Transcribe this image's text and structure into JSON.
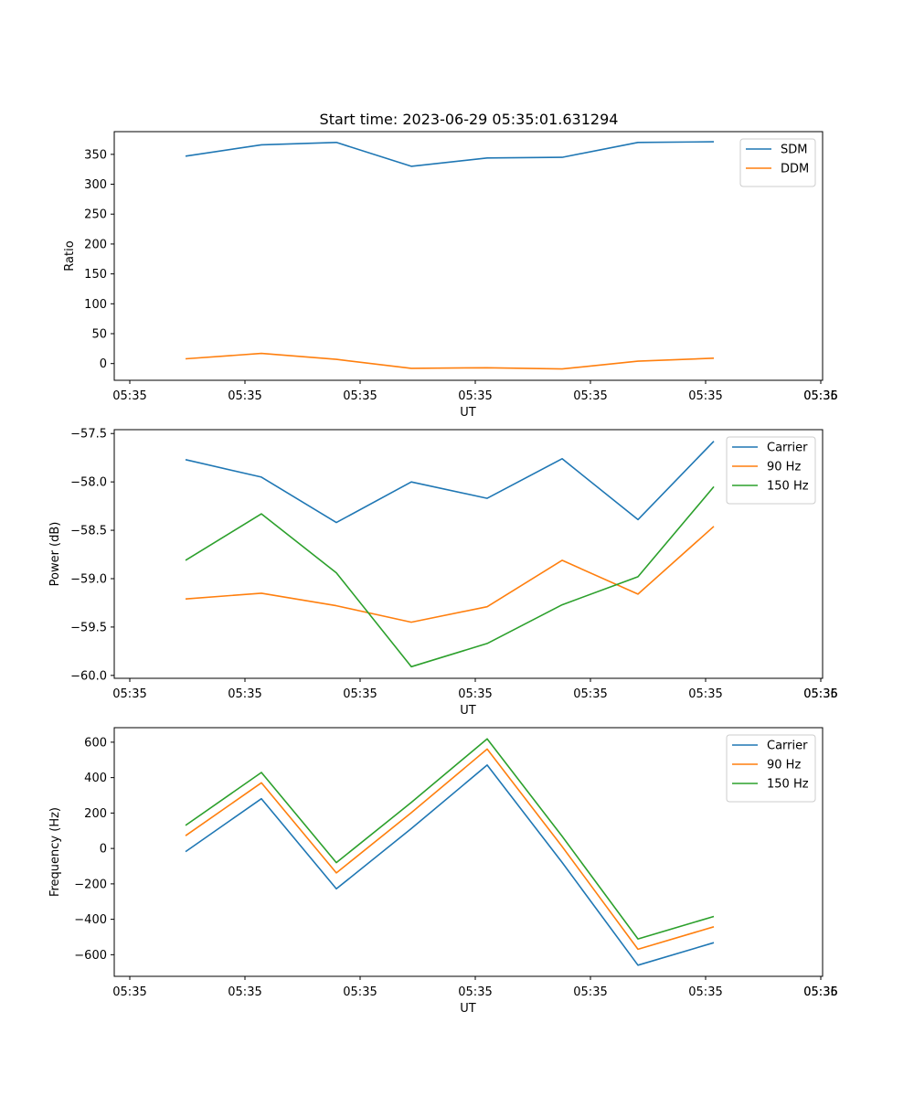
{
  "figure": {
    "title": "Start time: 2023-06-29 05:35:01.631294"
  },
  "chart_data": [
    {
      "type": "line",
      "xlabel": "UT",
      "ylabel": "Ratio",
      "x_tick_labels": [
        "05:35",
        "05:35",
        "05:35",
        "05:35",
        "05:35",
        "05:35",
        "05:35"
      ],
      "x_tick_labels_right": "05:36",
      "ylim": [
        -28,
        388
      ],
      "y_ticks": [
        0,
        50,
        100,
        150,
        200,
        250,
        300,
        350
      ],
      "y_tick_labels": [
        "0",
        "50",
        "100",
        "150",
        "200",
        "250",
        "300",
        "350"
      ],
      "grid": false,
      "legend": "top-right",
      "series": [
        {
          "name": "SDM",
          "color": "#1f77b4",
          "values": [
            347,
            366,
            370,
            330,
            344,
            345,
            370,
            371
          ]
        },
        {
          "name": "DDM",
          "color": "#ff7f0e",
          "values": [
            8,
            17,
            7,
            -8,
            -7,
            -9,
            4,
            9
          ]
        }
      ]
    },
    {
      "type": "line",
      "xlabel": "UT",
      "ylabel": "Power (dB)",
      "x_tick_labels": [
        "05:35",
        "05:35",
        "05:35",
        "05:35",
        "05:35",
        "05:35",
        "05:35"
      ],
      "x_tick_labels_right": "05:36",
      "ylim": [
        -60.03,
        -57.46
      ],
      "y_ticks": [
        -60.0,
        -59.5,
        -59.0,
        -58.5,
        -58.0,
        -57.5
      ],
      "y_tick_labels": [
        "−60.0",
        "−59.5",
        "−59.0",
        "−58.5",
        "−58.0",
        "−57.5"
      ],
      "grid": false,
      "legend": "top-right",
      "series": [
        {
          "name": "Carrier",
          "color": "#1f77b4",
          "values": [
            -57.77,
            -57.95,
            -58.42,
            -58.0,
            -58.17,
            -57.76,
            -58.39,
            -57.58
          ]
        },
        {
          "name": "90 Hz",
          "color": "#ff7f0e",
          "values": [
            -59.21,
            -59.15,
            -59.28,
            -59.45,
            -59.29,
            -58.81,
            -59.16,
            -58.46
          ]
        },
        {
          "name": "150 Hz",
          "color": "#2ca02c",
          "values": [
            -58.81,
            -58.33,
            -58.94,
            -59.91,
            -59.67,
            -59.27,
            -58.98,
            -58.05
          ]
        }
      ]
    },
    {
      "type": "line",
      "xlabel": "UT",
      "ylabel": "Frequency (Hz)",
      "x_tick_labels": [
        "05:35",
        "05:35",
        "05:35",
        "05:35",
        "05:35",
        "05:35",
        "05:35"
      ],
      "x_tick_labels_right": "05:36",
      "ylim": [
        -722,
        682
      ],
      "y_ticks": [
        -600,
        -400,
        -200,
        0,
        200,
        400,
        600
      ],
      "y_tick_labels": [
        "−600",
        "−400",
        "−200",
        "0",
        "200",
        "400",
        "600"
      ],
      "grid": false,
      "legend": "top-right",
      "series": [
        {
          "name": "Carrier",
          "color": "#1f77b4",
          "values": [
            -18,
            281,
            -228,
            112,
            471,
            -79,
            -659,
            -532
          ]
        },
        {
          "name": "90 Hz",
          "color": "#ff7f0e",
          "values": [
            72,
            371,
            -138,
            202,
            561,
            11,
            -569,
            -442
          ]
        },
        {
          "name": "150 Hz",
          "color": "#2ca02c",
          "values": [
            130,
            429,
            -80,
            260,
            619,
            69,
            -511,
            -384
          ]
        }
      ]
    }
  ]
}
